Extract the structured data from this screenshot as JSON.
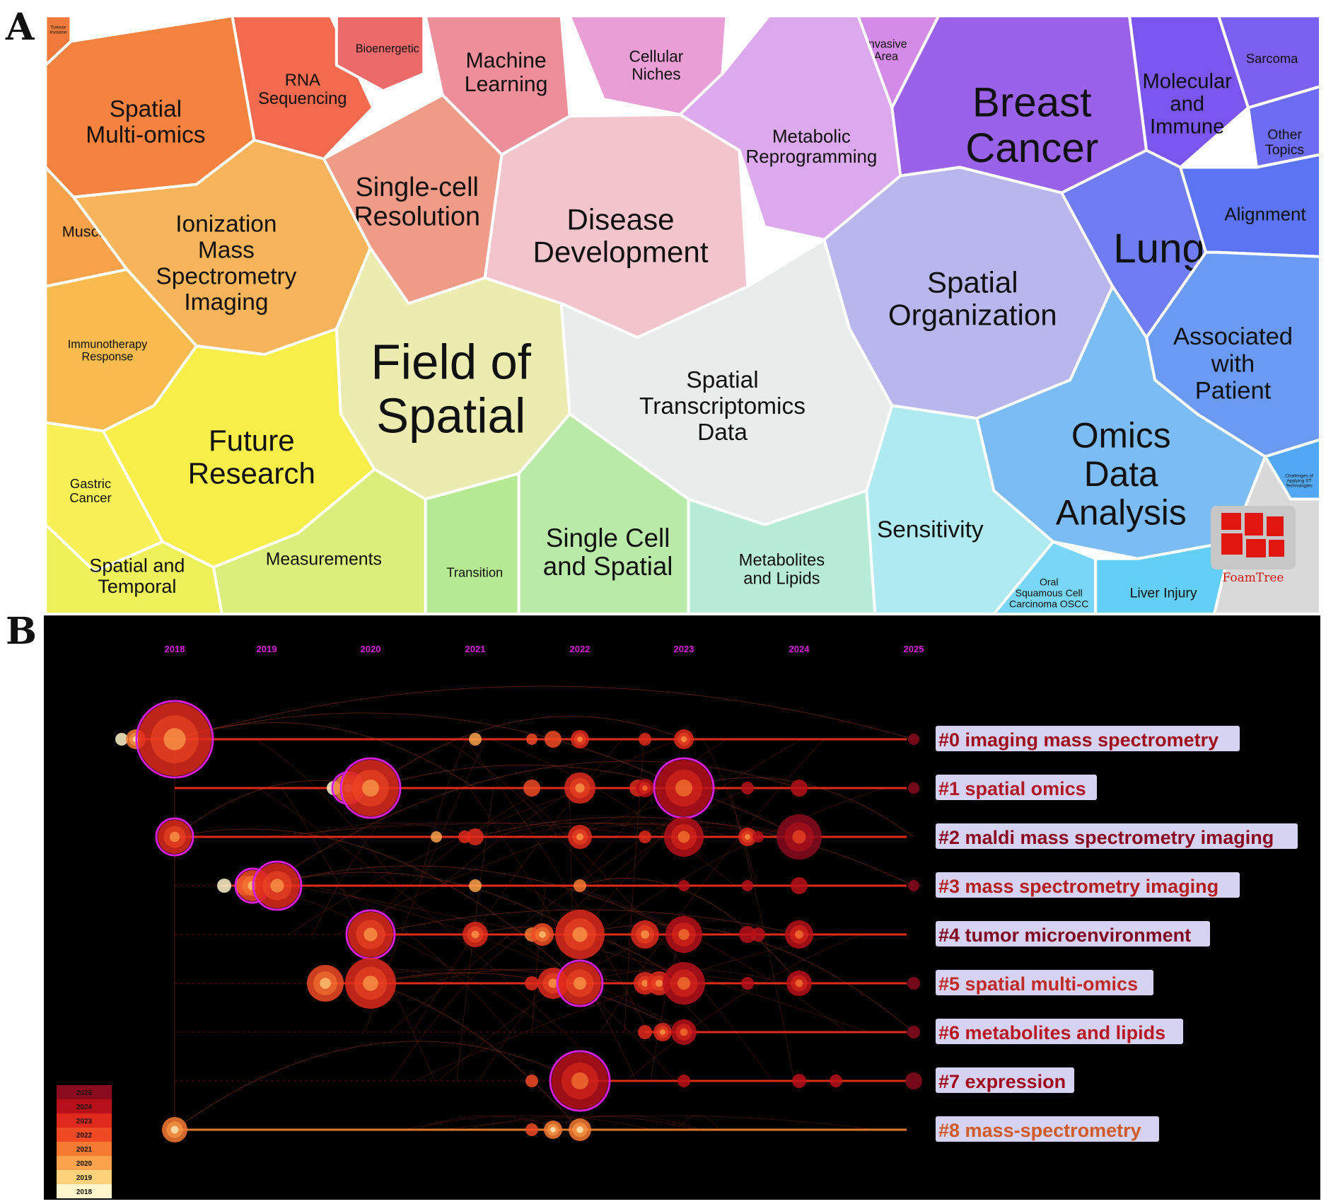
{
  "panels": {
    "a": "A",
    "b": "B"
  },
  "foamtree": {
    "logo_text": "FoamTree",
    "cells": [
      {
        "label": "Tumour\nInvasion",
        "color": "#f07a3c"
      },
      {
        "label": "RNA\nSequencing",
        "color": "#f36a4e"
      },
      {
        "label": "Bioenergetic",
        "color": "#ec6a6a"
      },
      {
        "label": "Machine\nLearning",
        "color": "#ec8f9a"
      },
      {
        "label": "Cellular\nNiches",
        "color": "#ea9ed6"
      },
      {
        "label": "Invasive\nArea",
        "color": "#d48be8"
      },
      {
        "label": "Spatial\nMulti-omics",
        "color": "#f5823e"
      },
      {
        "label": "Single-cell\nResolution",
        "color": "#f09a88"
      },
      {
        "label": "Disease\nDevelopment",
        "color": "#f2c4cc"
      },
      {
        "label": "Metabolic\nReprogramming",
        "color": "#dca9ec"
      },
      {
        "label": "Breast\nCancer",
        "color": "#9a62e8"
      },
      {
        "label": "Molecular\nand\nImmune",
        "color": "#7a55ee"
      },
      {
        "label": "Sarcoma",
        "color": "#7c60f2"
      },
      {
        "label": "Other\nTopics",
        "color": "#6c6cf4"
      },
      {
        "label": "Muscle",
        "color": "#f7a24a"
      },
      {
        "label": "Ionization\nMass\nSpectrometry\nImaging",
        "color": "#f7b45a"
      },
      {
        "label": "Spatial\nOrganization",
        "color": "#b8b6ec"
      },
      {
        "label": "Lung",
        "color": "#6f7cf2"
      },
      {
        "label": "Alignment",
        "color": "#5a74f2"
      },
      {
        "label": "Immunotherapy\nResponse",
        "color": "#f9bb4e"
      },
      {
        "label": "Field of\nSpatial",
        "color": "#ecebb0"
      },
      {
        "label": "Spatial\nTranscriptomics\nData",
        "color": "#e8ecea"
      },
      {
        "label": "Associated\nwith\nPatient",
        "color": "#6b9af5"
      },
      {
        "label": "Future\nResearch",
        "color": "#f8ee4a"
      },
      {
        "label": "Gastric\nCancer",
        "color": "#f9f058"
      },
      {
        "label": "Omics\nData\nAnalysis",
        "color": "#7bbcf4"
      },
      {
        "label": "Challenges of\nApplying ST\nTechnologies",
        "color": "#52a8f4"
      },
      {
        "label": "Spatial and\nTemporal",
        "color": "#eef05a"
      },
      {
        "label": "Measurements",
        "color": "#dbee7c"
      },
      {
        "label": "Transition",
        "color": "#b6ea92"
      },
      {
        "label": "Single Cell\nand Spatial",
        "color": "#b9eaa8"
      },
      {
        "label": "Metabolites\nand Lipids",
        "color": "#b8ecd6"
      },
      {
        "label": "Sensitivity",
        "color": "#aeeaf0"
      },
      {
        "label": "Oral\nSquamous Cell\nCarcinoma OSCC",
        "color": "#7ad6f6"
      },
      {
        "label": "Liver Injury",
        "color": "#64cff6"
      },
      {
        "label": "",
        "color": "#d9d9d9"
      }
    ]
  },
  "timeline": {
    "years": [
      "2018",
      "2019",
      "2020",
      "2021",
      "2022",
      "2023",
      "2024",
      "2025"
    ],
    "clusters": [
      {
        "label": "#0 imaging mass spectrometry",
        "color": "#a0101c"
      },
      {
        "label": "#1 spatial omics",
        "color": "#b01826"
      },
      {
        "label": "#2 maldi mass spectrometry imaging",
        "color": "#8a0a22"
      },
      {
        "label": "#3 mass spectrometry imaging",
        "color": "#b42020"
      },
      {
        "label": "#4 tumor microenvironment",
        "color": "#800822"
      },
      {
        "label": "#5 spatial multi-omics",
        "color": "#c02a28"
      },
      {
        "label": "#6 metabolites and lipids",
        "color": "#b81a24"
      },
      {
        "label": "#7 expression",
        "color": "#a00c1e"
      },
      {
        "label": "#8 mass-spectrometry",
        "color": "#d05a2a"
      }
    ],
    "legend": [
      {
        "year": "2025",
        "color": "#8a0a1e"
      },
      {
        "year": "2024",
        "color": "#b8101a"
      },
      {
        "year": "2023",
        "color": "#e02a1c"
      },
      {
        "year": "2022",
        "color": "#f04a24"
      },
      {
        "year": "2021",
        "color": "#f77a32"
      },
      {
        "year": "2020",
        "color": "#fba24c"
      },
      {
        "year": "2019",
        "color": "#fdd27a"
      },
      {
        "year": "2018",
        "color": "#fff6cc"
      }
    ]
  }
}
